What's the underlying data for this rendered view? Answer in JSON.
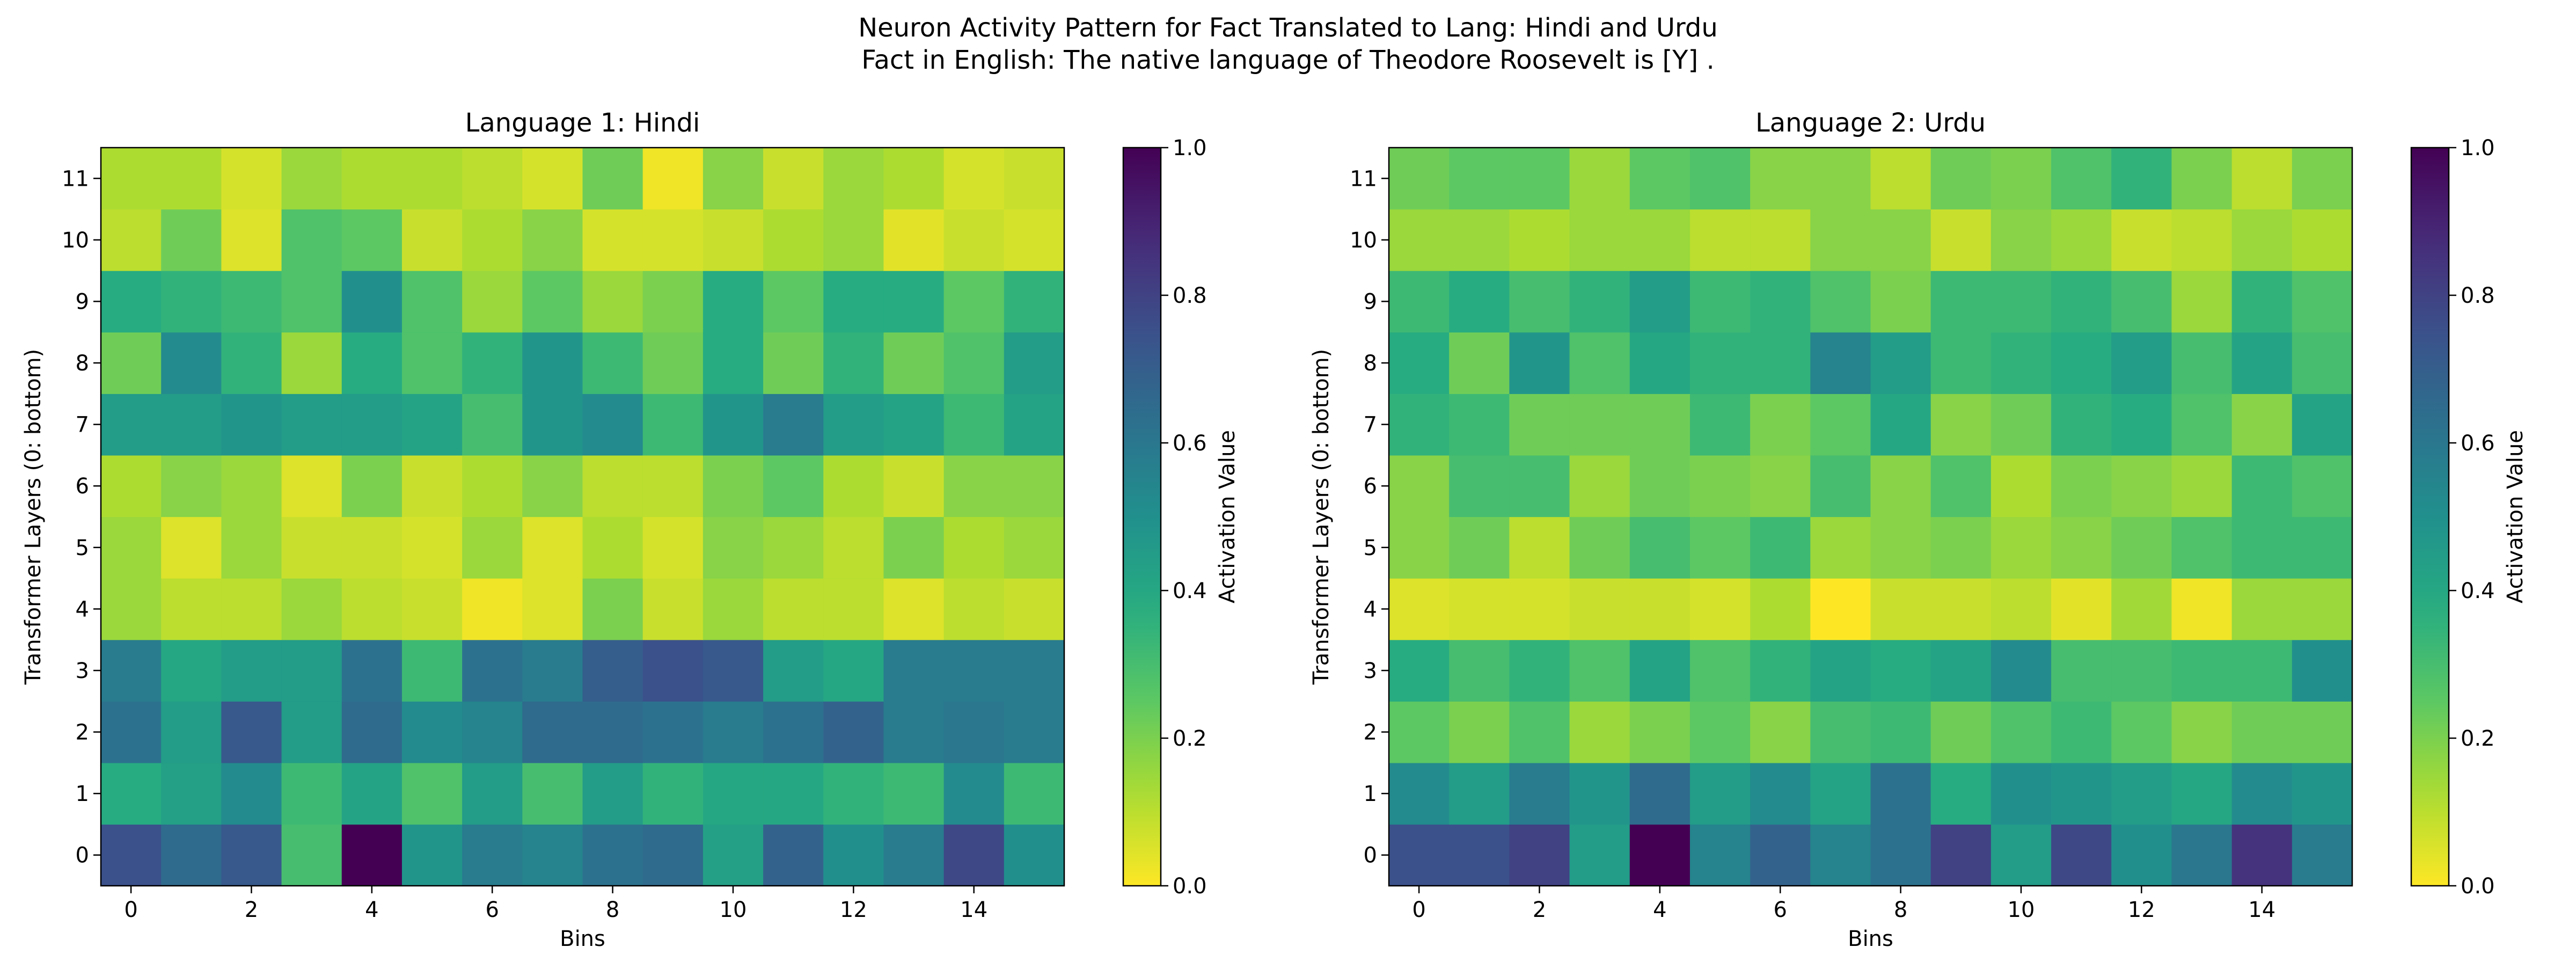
{
  "title_line1": "Neuron Activity Pattern for Fact Translated to Lang: Hindi and Urdu",
  "title_line2": "Fact in English: The native language of Theodore Roosevelt is [Y] .",
  "chart_data": [
    {
      "type": "heatmap",
      "title": "Language 1: Hindi",
      "xlabel": "Bins",
      "ylabel": "Transformer Layers (0: bottom)",
      "colorbar_label": "Activation Value",
      "colormap": "viridis_r",
      "vmin": 0.0,
      "vmax": 1.0,
      "x_ticks": [
        "0",
        "2",
        "4",
        "6",
        "8",
        "10",
        "12",
        "14"
      ],
      "y_ticks": [
        "0",
        "1",
        "2",
        "3",
        "4",
        "5",
        "6",
        "7",
        "8",
        "9",
        "10",
        "11"
      ],
      "colorbar_ticks": [
        "0.0",
        "0.2",
        "0.4",
        "0.6",
        "0.8",
        "1.0"
      ],
      "rows_by_layer": [
        [
          0.75,
          0.65,
          0.72,
          0.3,
          1.0,
          0.48,
          0.58,
          0.55,
          0.62,
          0.65,
          0.43,
          0.68,
          0.5,
          0.58,
          0.78,
          0.5
        ],
        [
          0.38,
          0.43,
          0.52,
          0.32,
          0.42,
          0.28,
          0.45,
          0.3,
          0.45,
          0.35,
          0.4,
          0.4,
          0.35,
          0.32,
          0.52,
          0.32
        ],
        [
          0.62,
          0.45,
          0.72,
          0.45,
          0.65,
          0.52,
          0.55,
          0.65,
          0.65,
          0.62,
          0.58,
          0.62,
          0.68,
          0.58,
          0.6,
          0.58
        ],
        [
          0.58,
          0.4,
          0.45,
          0.45,
          0.62,
          0.32,
          0.62,
          0.58,
          0.7,
          0.75,
          0.72,
          0.45,
          0.4,
          0.58,
          0.58,
          0.58
        ],
        [
          0.15,
          0.1,
          0.1,
          0.15,
          0.1,
          0.08,
          0.02,
          0.05,
          0.2,
          0.08,
          0.15,
          0.1,
          0.1,
          0.05,
          0.1,
          0.08
        ],
        [
          0.15,
          0.05,
          0.15,
          0.08,
          0.08,
          0.06,
          0.15,
          0.05,
          0.12,
          0.06,
          0.18,
          0.15,
          0.1,
          0.2,
          0.12,
          0.15
        ],
        [
          0.12,
          0.18,
          0.15,
          0.05,
          0.2,
          0.08,
          0.12,
          0.18,
          0.1,
          0.1,
          0.2,
          0.25,
          0.12,
          0.08,
          0.18,
          0.18
        ],
        [
          0.45,
          0.45,
          0.48,
          0.45,
          0.45,
          0.42,
          0.3,
          0.48,
          0.52,
          0.32,
          0.48,
          0.58,
          0.45,
          0.42,
          0.32,
          0.42
        ],
        [
          0.22,
          0.52,
          0.35,
          0.15,
          0.38,
          0.28,
          0.35,
          0.48,
          0.32,
          0.22,
          0.38,
          0.22,
          0.35,
          0.22,
          0.28,
          0.45
        ],
        [
          0.38,
          0.35,
          0.32,
          0.28,
          0.5,
          0.28,
          0.15,
          0.25,
          0.15,
          0.2,
          0.38,
          0.25,
          0.38,
          0.38,
          0.25,
          0.35
        ],
        [
          0.1,
          0.22,
          0.05,
          0.28,
          0.25,
          0.08,
          0.12,
          0.18,
          0.06,
          0.06,
          0.08,
          0.12,
          0.15,
          0.04,
          0.08,
          0.06
        ],
        [
          0.12,
          0.12,
          0.06,
          0.15,
          0.12,
          0.12,
          0.1,
          0.06,
          0.22,
          0.02,
          0.18,
          0.08,
          0.15,
          0.12,
          0.06,
          0.08
        ]
      ]
    },
    {
      "type": "heatmap",
      "title": "Language 2: Urdu",
      "xlabel": "Bins",
      "ylabel": "Transformer Layers (0: bottom)",
      "colorbar_label": "Activation Value",
      "colormap": "viridis_r",
      "vmin": 0.0,
      "vmax": 1.0,
      "x_ticks": [
        "0",
        "2",
        "4",
        "6",
        "8",
        "10",
        "12",
        "14"
      ],
      "y_ticks": [
        "0",
        "1",
        "2",
        "3",
        "4",
        "5",
        "6",
        "7",
        "8",
        "9",
        "10",
        "11"
      ],
      "colorbar_ticks": [
        "0.0",
        "0.2",
        "0.4",
        "0.6",
        "0.8",
        "1.0"
      ],
      "rows_by_layer": [
        [
          0.75,
          0.75,
          0.8,
          0.45,
          1.0,
          0.55,
          0.68,
          0.55,
          0.62,
          0.8,
          0.45,
          0.78,
          0.5,
          0.6,
          0.85,
          0.58
        ],
        [
          0.52,
          0.45,
          0.58,
          0.48,
          0.65,
          0.45,
          0.52,
          0.42,
          0.62,
          0.38,
          0.5,
          0.48,
          0.45,
          0.4,
          0.52,
          0.48
        ],
        [
          0.25,
          0.2,
          0.28,
          0.15,
          0.2,
          0.25,
          0.18,
          0.3,
          0.32,
          0.22,
          0.28,
          0.32,
          0.25,
          0.18,
          0.22,
          0.22
        ],
        [
          0.38,
          0.3,
          0.35,
          0.28,
          0.42,
          0.28,
          0.35,
          0.42,
          0.38,
          0.42,
          0.52,
          0.3,
          0.3,
          0.32,
          0.32,
          0.5
        ],
        [
          0.05,
          0.06,
          0.06,
          0.08,
          0.08,
          0.06,
          0.12,
          0.0,
          0.08,
          0.08,
          0.1,
          0.04,
          0.14,
          0.02,
          0.15,
          0.15
        ],
        [
          0.18,
          0.22,
          0.1,
          0.22,
          0.3,
          0.25,
          0.32,
          0.15,
          0.18,
          0.2,
          0.15,
          0.18,
          0.22,
          0.28,
          0.32,
          0.32
        ],
        [
          0.18,
          0.3,
          0.3,
          0.15,
          0.22,
          0.2,
          0.18,
          0.3,
          0.18,
          0.28,
          0.12,
          0.2,
          0.18,
          0.15,
          0.32,
          0.28
        ],
        [
          0.35,
          0.32,
          0.22,
          0.22,
          0.22,
          0.32,
          0.2,
          0.25,
          0.4,
          0.18,
          0.22,
          0.35,
          0.38,
          0.28,
          0.18,
          0.42
        ],
        [
          0.38,
          0.22,
          0.48,
          0.28,
          0.4,
          0.35,
          0.35,
          0.55,
          0.45,
          0.32,
          0.35,
          0.38,
          0.45,
          0.3,
          0.42,
          0.3
        ],
        [
          0.32,
          0.38,
          0.3,
          0.35,
          0.45,
          0.32,
          0.35,
          0.28,
          0.2,
          0.32,
          0.32,
          0.35,
          0.3,
          0.15,
          0.35,
          0.28
        ],
        [
          0.15,
          0.15,
          0.12,
          0.15,
          0.15,
          0.1,
          0.1,
          0.18,
          0.18,
          0.08,
          0.18,
          0.15,
          0.08,
          0.1,
          0.15,
          0.12
        ],
        [
          0.22,
          0.25,
          0.25,
          0.15,
          0.25,
          0.28,
          0.18,
          0.18,
          0.1,
          0.22,
          0.2,
          0.28,
          0.35,
          0.2,
          0.1,
          0.2
        ]
      ]
    }
  ]
}
